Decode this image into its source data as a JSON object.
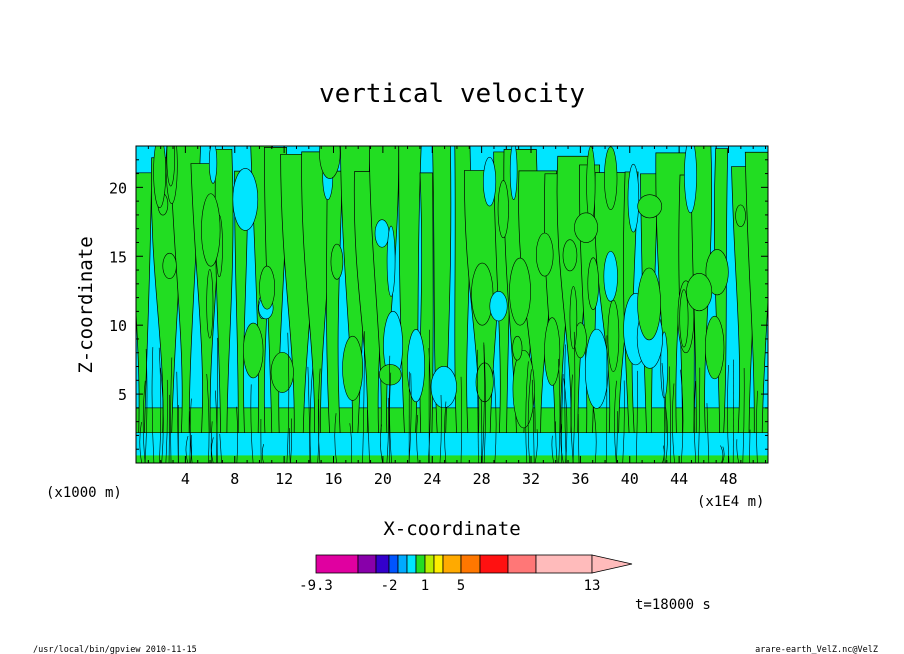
{
  "chart_data": {
    "type": "heatmap",
    "title": "vertical velocity",
    "xlabel": "X-coordinate",
    "ylabel": "Z-coordinate",
    "x_units": "(x1E4 m)",
    "y_units": "(x1000 m)",
    "xlim": [
      0,
      51.2
    ],
    "ylim": [
      0,
      23
    ],
    "x_ticks": [
      4,
      8,
      12,
      16,
      20,
      24,
      28,
      32,
      36,
      40,
      44,
      48
    ],
    "y_ticks": [
      5,
      10,
      15,
      20
    ],
    "x_tick_labels": [
      "4",
      "8",
      "12",
      "16",
      "20",
      "24",
      "28",
      "32",
      "36",
      "40",
      "44",
      "48"
    ],
    "y_tick_labels": [
      "5",
      "10",
      "15",
      "20"
    ],
    "time_label": "t=18000 s",
    "colors": {
      "negative": "#00e5ff",
      "positive": "#22dd22",
      "contour": "#000000"
    },
    "colorbar": {
      "colors": [
        "#e000a0",
        "#8800aa",
        "#3300cc",
        "#0055ff",
        "#00aaff",
        "#00e5ff",
        "#22dd22",
        "#b8ee00",
        "#ffee00",
        "#ffaa00",
        "#ff7700",
        "#ff1111",
        "#ff7777",
        "#ffbbbb"
      ],
      "labels": [
        {
          "index": 0,
          "text": "-9.3"
        },
        {
          "index": 3,
          "text": "-2"
        },
        {
          "index": 7,
          "text": "1"
        },
        {
          "index": 10,
          "text": "5"
        },
        {
          "index": 14,
          "text": "13"
        }
      ]
    }
  },
  "footer": {
    "left": "/usr/local/bin/gpview  2010-11-15",
    "right": "arare-earth_VelZ.nc@VelZ"
  }
}
